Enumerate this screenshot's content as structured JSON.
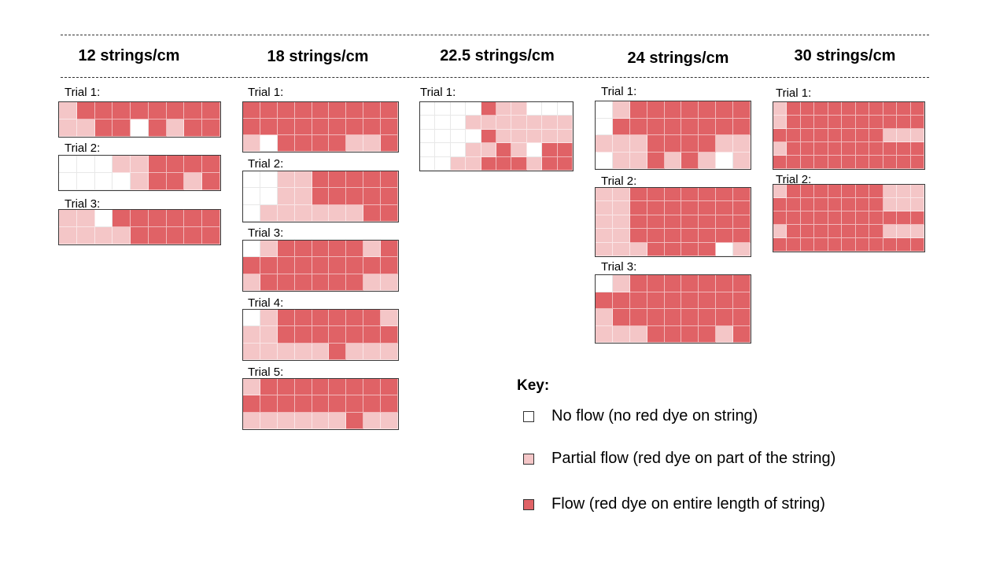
{
  "colors": {
    "none": "#ffffff",
    "partial": "#f4c6c7",
    "flow": "#e06266"
  },
  "headers": [
    "12 strings/cm",
    "18 strings/cm",
    "22.5 strings/cm",
    "24 strings/cm",
    "30 strings/cm"
  ],
  "columns": [
    {
      "trials": [
        {
          "label": "Trial 1:",
          "rows": [
            [
              1,
              2,
              2,
              2,
              2,
              2,
              2,
              2,
              2
            ],
            [
              1,
              1,
              2,
              2,
              0,
              2,
              1,
              2,
              2
            ]
          ]
        },
        {
          "label": "Trial 2:",
          "rows": [
            [
              0,
              0,
              0,
              1,
              1,
              2,
              2,
              2,
              2
            ],
            [
              0,
              0,
              0,
              0,
              1,
              2,
              2,
              1,
              2
            ]
          ]
        },
        {
          "label": "Trial 3:",
          "rows": [
            [
              1,
              1,
              0,
              2,
              2,
              2,
              2,
              2,
              2
            ],
            [
              1,
              1,
              1,
              1,
              2,
              2,
              2,
              2,
              2
            ]
          ]
        }
      ]
    },
    {
      "trials": [
        {
          "label": "Trial 1:",
          "rows": [
            [
              2,
              2,
              2,
              2,
              2,
              2,
              2,
              2,
              2
            ],
            [
              2,
              2,
              2,
              2,
              2,
              2,
              2,
              2,
              2
            ],
            [
              1,
              0,
              2,
              2,
              2,
              2,
              1,
              1,
              2
            ]
          ]
        },
        {
          "label": "Trial 2:",
          "rows": [
            [
              0,
              0,
              1,
              1,
              2,
              2,
              2,
              2,
              2
            ],
            [
              0,
              0,
              1,
              1,
              2,
              2,
              2,
              2,
              2
            ],
            [
              0,
              1,
              1,
              1,
              1,
              1,
              1,
              2,
              2
            ]
          ]
        },
        {
          "label": "Trial 3:",
          "rows": [
            [
              0,
              1,
              2,
              2,
              2,
              2,
              2,
              1,
              2
            ],
            [
              2,
              2,
              2,
              2,
              2,
              2,
              2,
              2,
              2
            ],
            [
              1,
              2,
              2,
              2,
              2,
              2,
              2,
              1,
              1
            ]
          ]
        },
        {
          "label": "Trial 4:",
          "rows": [
            [
              0,
              1,
              2,
              2,
              2,
              2,
              2,
              2,
              1
            ],
            [
              1,
              1,
              2,
              2,
              2,
              2,
              2,
              2,
              2
            ],
            [
              1,
              1,
              1,
              1,
              1,
              2,
              1,
              1,
              1
            ]
          ]
        },
        {
          "label": "Trial 5:",
          "rows": [
            [
              1,
              2,
              2,
              2,
              2,
              2,
              2,
              2,
              2
            ],
            [
              2,
              2,
              2,
              2,
              2,
              2,
              2,
              2,
              2
            ],
            [
              1,
              1,
              1,
              1,
              1,
              1,
              2,
              1,
              1
            ]
          ]
        }
      ]
    },
    {
      "trials": [
        {
          "label": "Trial 1:",
          "rows": [
            [
              0,
              0,
              0,
              0,
              2,
              1,
              1,
              0,
              0,
              0
            ],
            [
              0,
              0,
              0,
              1,
              1,
              1,
              1,
              1,
              1,
              1
            ],
            [
              0,
              0,
              0,
              0,
              2,
              1,
              1,
              1,
              1,
              1
            ],
            [
              0,
              0,
              0,
              1,
              1,
              2,
              1,
              0,
              2,
              2
            ],
            [
              0,
              0,
              1,
              1,
              2,
              2,
              2,
              1,
              2,
              2
            ]
          ]
        }
      ]
    },
    {
      "trials": [
        {
          "label": "Trial 1:",
          "rows": [
            [
              0,
              1,
              2,
              2,
              2,
              2,
              2,
              2,
              2
            ],
            [
              0,
              2,
              2,
              2,
              2,
              2,
              2,
              2,
              2
            ],
            [
              1,
              1,
              1,
              2,
              2,
              2,
              2,
              1,
              1
            ],
            [
              0,
              1,
              1,
              2,
              1,
              2,
              1,
              0,
              1
            ]
          ]
        },
        {
          "label": "Trial 2:",
          "rows": [
            [
              1,
              1,
              2,
              2,
              2,
              2,
              2,
              2,
              2
            ],
            [
              1,
              1,
              2,
              2,
              2,
              2,
              2,
              2,
              2
            ],
            [
              1,
              1,
              2,
              2,
              2,
              2,
              2,
              2,
              2
            ],
            [
              1,
              1,
              2,
              2,
              2,
              2,
              2,
              2,
              2
            ],
            [
              1,
              1,
              1,
              2,
              2,
              2,
              2,
              0,
              1
            ]
          ]
        },
        {
          "label": "Trial 3:",
          "rows": [
            [
              0,
              1,
              2,
              2,
              2,
              2,
              2,
              2,
              2
            ],
            [
              2,
              2,
              2,
              2,
              2,
              2,
              2,
              2,
              2
            ],
            [
              1,
              2,
              2,
              2,
              2,
              2,
              2,
              2,
              2
            ],
            [
              1,
              1,
              1,
              2,
              2,
              2,
              2,
              1,
              2
            ]
          ]
        }
      ]
    },
    {
      "trials": [
        {
          "label": "Trial 1:",
          "rows": [
            [
              1,
              2,
              2,
              2,
              2,
              2,
              2,
              2,
              2,
              2,
              2
            ],
            [
              1,
              2,
              2,
              2,
              2,
              2,
              2,
              2,
              2,
              2,
              2
            ],
            [
              2,
              2,
              2,
              2,
              2,
              2,
              2,
              2,
              1,
              1,
              1
            ],
            [
              1,
              2,
              2,
              2,
              2,
              2,
              2,
              2,
              2,
              2,
              2
            ],
            [
              2,
              2,
              2,
              2,
              2,
              2,
              2,
              2,
              2,
              2,
              2
            ]
          ]
        },
        {
          "label": "Trial 2:",
          "rows": [
            [
              1,
              2,
              2,
              2,
              2,
              2,
              2,
              2,
              1,
              1,
              1
            ],
            [
              2,
              2,
              2,
              2,
              2,
              2,
              2,
              2,
              1,
              1,
              1
            ],
            [
              2,
              2,
              2,
              2,
              2,
              2,
              2,
              2,
              2,
              2,
              2
            ],
            [
              1,
              2,
              2,
              2,
              2,
              2,
              2,
              2,
              1,
              1,
              1
            ],
            [
              2,
              2,
              2,
              2,
              2,
              2,
              2,
              2,
              2,
              2,
              2
            ]
          ]
        }
      ]
    }
  ],
  "key": {
    "title": "Key:",
    "items": [
      {
        "level": 0,
        "label": "No flow (no red dye on string)"
      },
      {
        "level": 1,
        "label": "Partial flow (red dye on part of the string)"
      },
      {
        "level": 2,
        "label": "Flow (red dye on entire length of string)"
      }
    ]
  }
}
